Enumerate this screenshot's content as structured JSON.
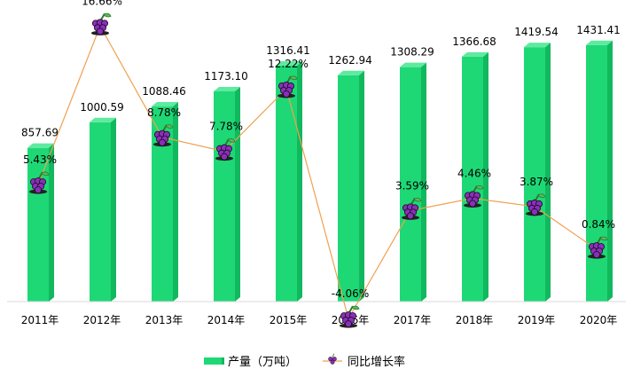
{
  "chart_data": {
    "type": "bar",
    "categories": [
      "2011年",
      "2012年",
      "2013年",
      "2014年",
      "2015年",
      "2016年",
      "2017年",
      "2018年",
      "2019年",
      "2020年"
    ],
    "series": [
      {
        "name": "产量（万吨）",
        "type": "bar",
        "axis": "left",
        "values": [
          857.69,
          1000.59,
          1088.46,
          1173.1,
          1316.41,
          1262.94,
          1308.29,
          1366.68,
          1419.54,
          1431.41
        ],
        "labels": [
          "857.69",
          "1000.59",
          "1088.46",
          "1173.10",
          "1316.41",
          "1262.94",
          "1308.29",
          "1366.68",
          "1419.54",
          "1431.41"
        ]
      },
      {
        "name": "同比增长率",
        "type": "line",
        "axis": "right",
        "values": [
          5.43,
          16.66,
          8.78,
          7.78,
          12.22,
          -4.06,
          3.59,
          4.46,
          3.87,
          0.84
        ],
        "labels": [
          "5.43%",
          "16.66%",
          "8.78%",
          "7.78%",
          "12.22%",
          "-4.06%",
          "3.59%",
          "4.46%",
          "3.87%",
          "0.84%"
        ]
      }
    ],
    "ylim_left": [
      0,
      1450
    ],
    "ylim_right": [
      -6,
      18
    ],
    "grid": false,
    "legend": "bottom",
    "colors": {
      "bar": "#1ed876",
      "bar_side": "#12b85e",
      "bar_top": "#5eea9f",
      "line": "#f0a050",
      "marker": "#8a2fb8"
    },
    "marker_icon": "grape-icon"
  }
}
